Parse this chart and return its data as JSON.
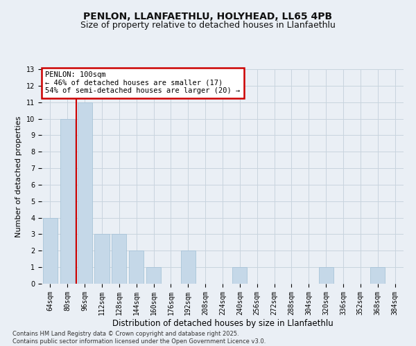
{
  "title1": "PENLON, LLANFAETHLU, HOLYHEAD, LL65 4PB",
  "title2": "Size of property relative to detached houses in Llanfaethlu",
  "xlabel": "Distribution of detached houses by size in Llanfaethlu",
  "ylabel": "Number of detached properties",
  "categories": [
    "64sqm",
    "80sqm",
    "96sqm",
    "112sqm",
    "128sqm",
    "144sqm",
    "160sqm",
    "176sqm",
    "192sqm",
    "208sqm",
    "224sqm",
    "240sqm",
    "256sqm",
    "272sqm",
    "288sqm",
    "304sqm",
    "320sqm",
    "336sqm",
    "352sqm",
    "368sqm",
    "384sqm"
  ],
  "values": [
    4,
    10,
    11,
    3,
    3,
    2,
    1,
    0,
    2,
    0,
    0,
    1,
    0,
    0,
    0,
    0,
    1,
    0,
    0,
    1,
    0
  ],
  "bar_color": "#c5d8e8",
  "bar_edge_color": "#a8c4d8",
  "grid_color": "#c8d4de",
  "background_color": "#eaeff5",
  "annotation_line1": "PENLON: 100sqm",
  "annotation_line2": "← 46% of detached houses are smaller (17)",
  "annotation_line3": "54% of semi-detached houses are larger (20) →",
  "annotation_box_color": "#ffffff",
  "annotation_box_edge_color": "#cc0000",
  "vline_color": "#cc0000",
  "vline_x": 1.5,
  "ylim": [
    0,
    13
  ],
  "yticks": [
    0,
    1,
    2,
    3,
    4,
    5,
    6,
    7,
    8,
    9,
    10,
    11,
    12,
    13
  ],
  "footnote": "Contains HM Land Registry data © Crown copyright and database right 2025.\nContains public sector information licensed under the Open Government Licence v3.0.",
  "title_fontsize": 10,
  "subtitle_fontsize": 9,
  "xlabel_fontsize": 8.5,
  "ylabel_fontsize": 8,
  "tick_fontsize": 7,
  "annot_fontsize": 7.5,
  "footnote_fontsize": 6
}
